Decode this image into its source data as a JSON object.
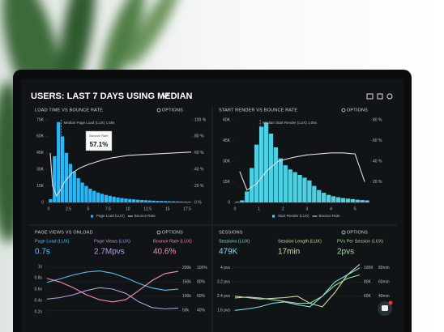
{
  "dashboard": {
    "title": "USERS: LAST 7 DAYS USING MEDIAN"
  },
  "chart_data": [
    {
      "type": "histogram",
      "title": "LOAD TIME VS BOUNCE RATE",
      "options": "OPTIONS",
      "bins": [
        0,
        0.5,
        1,
        1.5,
        2,
        2.5,
        3,
        3.5,
        4,
        4.5,
        5,
        5.5,
        6,
        6.5,
        7,
        7.5,
        8,
        8.5,
        9,
        9.5,
        10,
        10.5,
        11,
        11.5,
        12,
        12.5,
        13,
        13.5,
        14,
        14.5,
        15,
        15.5,
        16,
        16.5,
        17,
        17.5,
        18
      ],
      "xlim": [
        0,
        18
      ],
      "xticks": [
        0,
        2.5,
        5,
        7.5,
        10,
        12.5,
        15,
        17.5
      ],
      "ylim": [
        0,
        75000
      ],
      "yticks": [
        0,
        {
          "value": 15000,
          "label": "15K"
        },
        {
          "value": 30000,
          "label": "30K"
        },
        {
          "value": 45000,
          "label": "45K"
        },
        {
          "value": 60000,
          "label": "60K"
        },
        {
          "value": 75000,
          "label": "75K"
        }
      ],
      "y2lim": [
        0,
        100
      ],
      "y2ticks": [
        {
          "value": 0,
          "label": "0 %"
        },
        {
          "value": 20,
          "label": "20 %"
        },
        {
          "value": 40,
          "label": "40 %"
        },
        {
          "value": 60,
          "label": "60 %"
        },
        {
          "value": 80,
          "label": "80 %"
        },
        {
          "value": 100,
          "label": "100 %"
        }
      ],
      "median": 1.58,
      "annotation": "Median Page Load (LUX) 1.58s",
      "tooltip": {
        "title": "Bounce Rate",
        "text": "57.1%"
      },
      "series": [
        {
          "name": "Page Load (LUX)",
          "color": "#29b6f6",
          "values": [
            3000,
            42000,
            73000,
            60000,
            45000,
            35000,
            28000,
            22000,
            18000,
            15000,
            12500,
            10500,
            9000,
            7800,
            6800,
            6000,
            5200,
            4500,
            4000,
            3500,
            3100,
            2800,
            2500,
            2200,
            2000,
            1800,
            1600,
            1400,
            1300,
            1200,
            1100,
            1000,
            900,
            800,
            700,
            600
          ]
        },
        {
          "name": "Bounce Rate",
          "color": "#e0e0e0",
          "axis": "y2",
          "x": [
            0.2,
            0.5,
            1,
            1.5,
            2,
            3,
            4,
            5,
            6,
            7,
            8,
            10,
            12,
            14,
            16,
            18
          ],
          "values": [
            60,
            20,
            8,
            15,
            25,
            36,
            42,
            46,
            49,
            52,
            54,
            57,
            58,
            59,
            60,
            61
          ]
        }
      ]
    },
    {
      "type": "histogram",
      "title": "START RENDER VS BOUNCE RATE",
      "options": "OPTIONS",
      "bins": [
        0,
        0.2,
        0.4,
        0.6,
        0.8,
        1,
        1.2,
        1.4,
        1.6,
        1.8,
        2,
        2.2,
        2.4,
        2.6,
        2.8,
        3,
        3.2,
        3.4,
        3.6,
        3.8,
        4,
        4.2,
        4.4,
        4.6,
        4.8,
        5,
        5.2,
        5.4,
        5.6
      ],
      "xlim": [
        0,
        5.6
      ],
      "xticks": [
        0,
        1,
        2,
        3,
        4,
        5
      ],
      "ylim": [
        0,
        60000
      ],
      "yticks": [
        0,
        {
          "value": 15000,
          "label": "15K"
        },
        {
          "value": 30000,
          "label": "30K"
        },
        {
          "value": 45000,
          "label": "45K"
        },
        {
          "value": 60000,
          "label": "60K"
        }
      ],
      "y2lim": [
        0,
        80
      ],
      "y2ticks": [
        {
          "value": 20,
          "label": "20 %"
        },
        {
          "value": 40,
          "label": "40 %"
        },
        {
          "value": 60,
          "label": "60 %"
        },
        {
          "value": 80,
          "label": "80 %"
        }
      ],
      "median": 1.05,
      "annotation": "Median Start Render (LUX) 1.05s",
      "series": [
        {
          "name": "Start Render (LUX)",
          "color": "#4dd0e1",
          "values": [
            500,
            1500,
            8000,
            25000,
            42000,
            55000,
            58000,
            50000,
            40000,
            32000,
            27000,
            24000,
            22000,
            20000,
            18000,
            16000,
            12000,
            9000,
            7000,
            5500,
            4500,
            3800,
            3200,
            2800,
            2400,
            2000,
            1700,
            1500
          ]
        },
        {
          "name": "Bounce Rate",
          "color": "#e0e0e0",
          "axis": "y2",
          "x": [
            0.2,
            0.5,
            0.9,
            1.3,
            1.8,
            2.5,
            3,
            3.5,
            4,
            4.5,
            5,
            5.4
          ],
          "values": [
            30,
            12,
            18,
            30,
            40,
            44,
            46,
            47,
            48,
            48,
            47,
            20
          ]
        }
      ]
    },
    {
      "type": "line",
      "title": "PAGE VIEWS VS ONLOAD",
      "options": "OPTIONS",
      "x": [
        0,
        1,
        2,
        3,
        4,
        5,
        6,
        7,
        8,
        9,
        10
      ],
      "xlim": [
        0,
        10
      ],
      "ylim": [
        0.1,
        1.1
      ],
      "yticks": [
        {
          "value": 0.2,
          "label": "0.2s"
        },
        {
          "value": 0.4,
          "label": "0.4s"
        },
        {
          "value": 0.6,
          "label": "0.6s"
        },
        {
          "value": 0.8,
          "label": "0.8s"
        },
        {
          "value": 1,
          "label": "1s"
        }
      ],
      "y2lim": [
        30,
        110
      ],
      "y2ticks": [
        {
          "value": 40,
          "label": "40%"
        },
        {
          "value": 60,
          "label": "60%"
        },
        {
          "value": 80,
          "label": "80%"
        },
        {
          "value": 100,
          "label": "100%"
        }
      ],
      "y3lim": [
        25000,
        225000
      ],
      "y3ticks": [
        {
          "value": 50000,
          "label": "50k"
        },
        {
          "value": 100000,
          "label": "100k"
        },
        {
          "value": 150000,
          "label": "150k"
        },
        {
          "value": 200000,
          "label": "200k"
        }
      ],
      "series": [
        {
          "name": "Page Load (LUX)",
          "summary": "0.7s",
          "color": "#4fc3f7",
          "axis": "y",
          "values": [
            0.72,
            0.78,
            0.85,
            0.9,
            0.92,
            0.88,
            0.8,
            0.7,
            0.62,
            0.58,
            0.6
          ]
        },
        {
          "name": "Page Views (LUX)",
          "summary": "2.7Mpvs",
          "color": "#b39ddb",
          "axis": "y3",
          "values": [
            90000,
            95000,
            105000,
            120000,
            130000,
            125000,
            110000,
            80000,
            60000,
            55000,
            58000
          ]
        },
        {
          "name": "Bounce Rate (LUX)",
          "summary": "40.6%",
          "color": "#f48fb1",
          "axis": "y2",
          "values": [
            85,
            80,
            72,
            62,
            55,
            52,
            55,
            68,
            82,
            92,
            95
          ]
        }
      ]
    },
    {
      "type": "line",
      "title": "SESSIONS",
      "options": "OPTIONS",
      "x": [
        0,
        1,
        2,
        3,
        4,
        5,
        6,
        7,
        8,
        9,
        10
      ],
      "xlim": [
        0,
        10
      ],
      "ylim": [
        1.2,
        4.4
      ],
      "yticks": [
        {
          "value": 1.6,
          "label": "1.6 pvs"
        },
        {
          "value": 2.4,
          "label": "2.4 pvs"
        },
        {
          "value": 3.2,
          "label": "3.2 pvs"
        },
        {
          "value": 4,
          "label": "4 pvs"
        }
      ],
      "y2lim": [
        10,
        90
      ],
      "y2ticks": [
        {
          "value": 40,
          "label": "40min"
        },
        {
          "value": 60,
          "label": "60min"
        },
        {
          "value": 80,
          "label": "80min"
        }
      ],
      "y3lim": [
        30000,
        110000
      ],
      "y3ticks": [
        {
          "value": 60000,
          "label": "60K"
        },
        {
          "value": 80000,
          "label": "80K"
        },
        {
          "value": 100000,
          "label": "100K"
        }
      ],
      "series": [
        {
          "name": "Sessions (LUX)",
          "summary": "479K",
          "color": "#80deea",
          "axis": "y3",
          "values": [
            40000,
            42000,
            45000,
            50000,
            52000,
            48000,
            45000,
            60000,
            80000,
            90000,
            100000
          ]
        },
        {
          "name": "Session Length (LUX)",
          "summary": "17min",
          "color": "#c5e1a5",
          "axis": "y2",
          "values": [
            40,
            38,
            36,
            37,
            38,
            40,
            30,
            25,
            45,
            70,
            85
          ]
        },
        {
          "name": "PVs Per Session (LUX)",
          "summary": "2pvs",
          "color": "#a5d6a7",
          "axis": "y",
          "values": [
            2.3,
            2.35,
            2.3,
            2.2,
            2.1,
            2.0,
            2.0,
            2.4,
            3.0,
            3.4,
            3.6
          ]
        }
      ]
    }
  ]
}
